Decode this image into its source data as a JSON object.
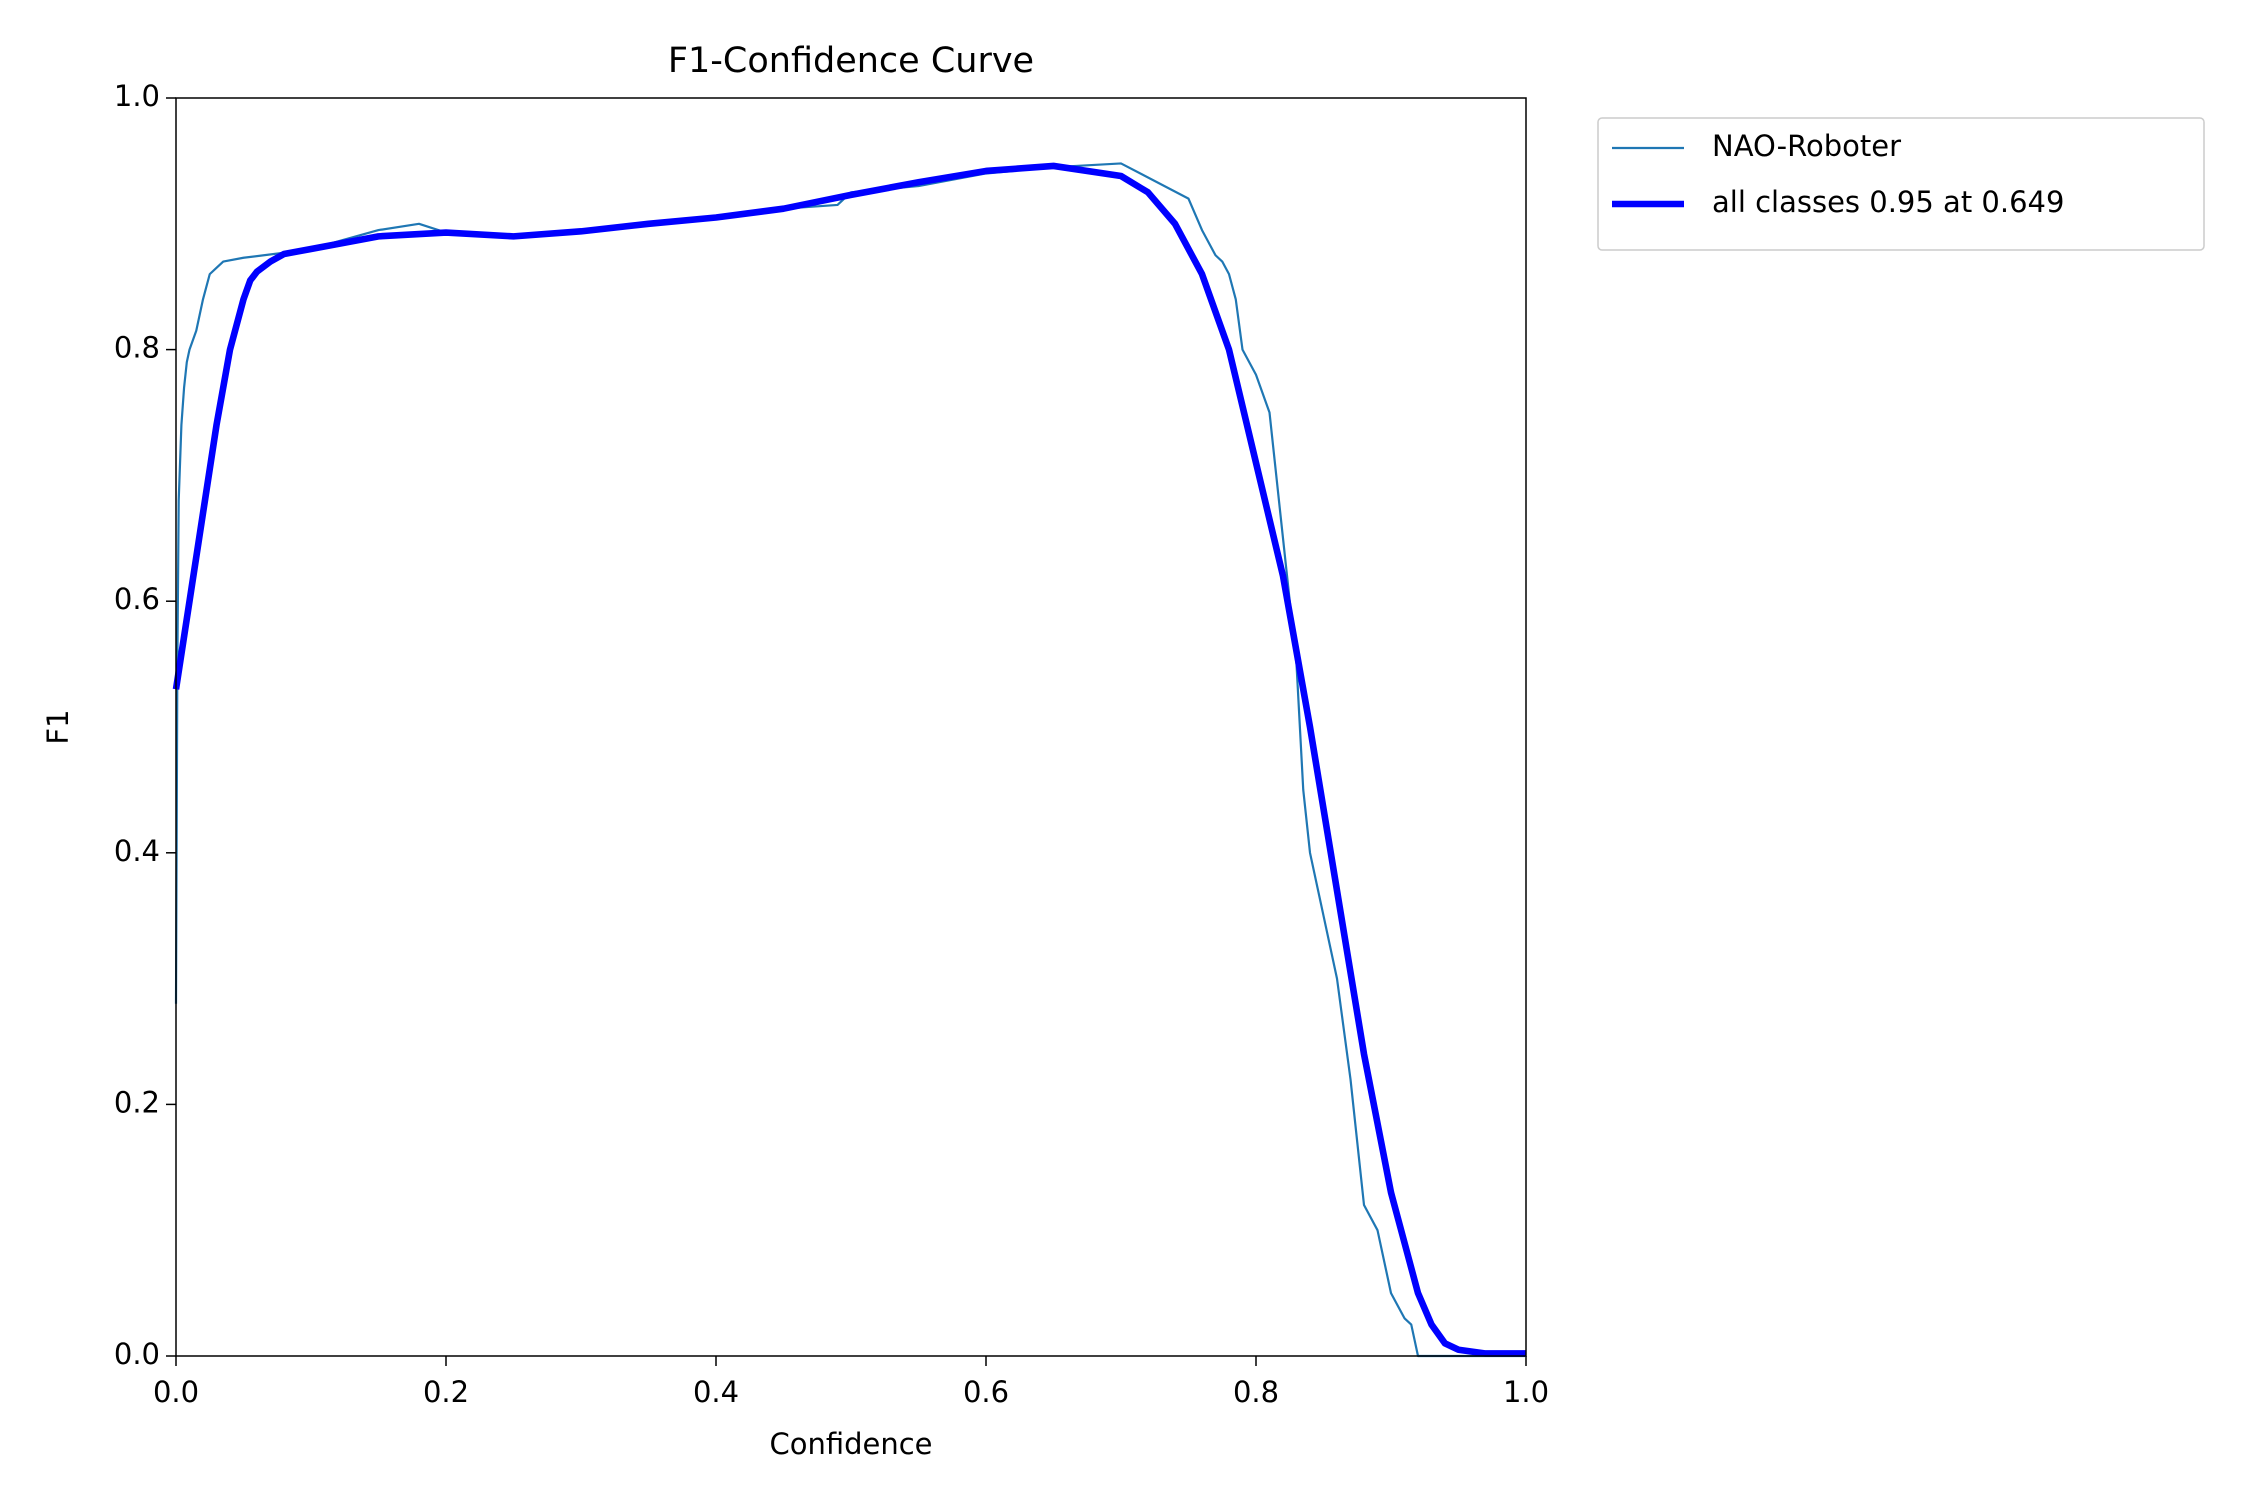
{
  "chart_data": {
    "type": "line",
    "title": "F1-Confidence Curve",
    "xlabel": "Confidence",
    "ylabel": "F1",
    "xlim": [
      0,
      1
    ],
    "ylim": [
      0,
      1
    ],
    "xticks": [
      {
        "value": 0,
        "label": "0.0"
      },
      {
        "value": 0.2,
        "label": "0.2"
      },
      {
        "value": 0.4,
        "label": "0.4"
      },
      {
        "value": 0.6,
        "label": "0.6"
      },
      {
        "value": 0.8,
        "label": "0.8"
      },
      {
        "value": 1,
        "label": "1.0"
      }
    ],
    "yticks": [
      {
        "value": 0,
        "label": "0.0"
      },
      {
        "value": 0.2,
        "label": "0.2"
      },
      {
        "value": 0.4,
        "label": "0.4"
      },
      {
        "value": 0.6,
        "label": "0.6"
      },
      {
        "value": 0.8,
        "label": "0.8"
      },
      {
        "value": 1,
        "label": "1.0"
      }
    ],
    "grid": false,
    "legend": "outside-upper-right",
    "series": [
      {
        "name": "NAO-Roboter",
        "color": "#1f77b4",
        "width": 1,
        "x": [
          0,
          0.001,
          0.002,
          0.004,
          0.006,
          0.008,
          0.01,
          0.015,
          0.02,
          0.025,
          0.03,
          0.035,
          0.05,
          0.08,
          0.1,
          0.15,
          0.18,
          0.2,
          0.25,
          0.3,
          0.35,
          0.4,
          0.45,
          0.49,
          0.5,
          0.55,
          0.6,
          0.65,
          0.7,
          0.75,
          0.76,
          0.77,
          0.775,
          0.78,
          0.785,
          0.79,
          0.8,
          0.81,
          0.815,
          0.82,
          0.825,
          0.83,
          0.835,
          0.84,
          0.85,
          0.86,
          0.87,
          0.88,
          0.89,
          0.9,
          0.91,
          0.915,
          0.92,
          0.95,
          1.0
        ],
        "values": [
          0.28,
          0.55,
          0.68,
          0.74,
          0.77,
          0.79,
          0.8,
          0.815,
          0.84,
          0.86,
          0.865,
          0.87,
          0.873,
          0.877,
          0.88,
          0.895,
          0.9,
          0.893,
          0.89,
          0.895,
          0.9,
          0.905,
          0.912,
          0.915,
          0.925,
          0.93,
          0.94,
          0.945,
          0.948,
          0.92,
          0.895,
          0.875,
          0.87,
          0.86,
          0.84,
          0.8,
          0.78,
          0.75,
          0.7,
          0.65,
          0.6,
          0.55,
          0.45,
          0.4,
          0.35,
          0.3,
          0.22,
          0.12,
          0.1,
          0.05,
          0.03,
          0.025,
          0,
          0,
          0
        ]
      },
      {
        "name": "all classes 0.95 at 0.649",
        "color": "#0000ff",
        "width": 3,
        "x": [
          0,
          0.01,
          0.02,
          0.03,
          0.04,
          0.05,
          0.055,
          0.06,
          0.07,
          0.08,
          0.1,
          0.15,
          0.2,
          0.25,
          0.3,
          0.35,
          0.4,
          0.45,
          0.5,
          0.55,
          0.6,
          0.65,
          0.7,
          0.72,
          0.74,
          0.76,
          0.78,
          0.8,
          0.82,
          0.84,
          0.86,
          0.88,
          0.9,
          0.92,
          0.93,
          0.94,
          0.95,
          0.97,
          1.0
        ],
        "values": [
          0.53,
          0.6,
          0.67,
          0.74,
          0.8,
          0.84,
          0.855,
          0.862,
          0.87,
          0.876,
          0.88,
          0.89,
          0.893,
          0.89,
          0.894,
          0.9,
          0.905,
          0.912,
          0.923,
          0.933,
          0.942,
          0.946,
          0.938,
          0.925,
          0.9,
          0.86,
          0.8,
          0.71,
          0.62,
          0.5,
          0.37,
          0.24,
          0.13,
          0.05,
          0.025,
          0.01,
          0.005,
          0.002,
          0.002
        ]
      }
    ]
  }
}
